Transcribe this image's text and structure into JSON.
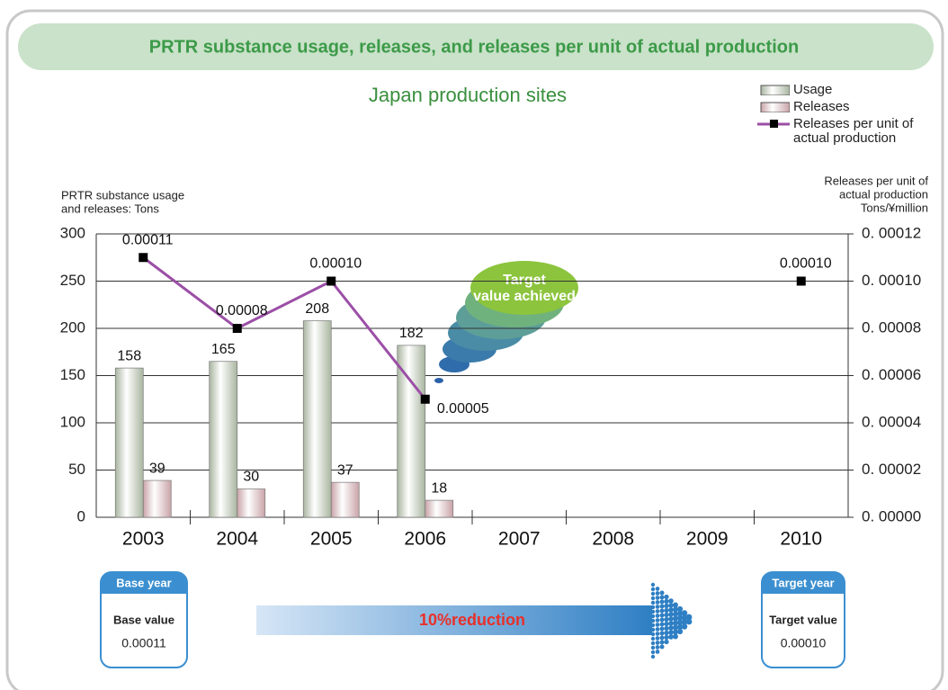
{
  "chart_data": {
    "type": "bar",
    "title": "PRTR substance usage, releases, and releases per unit of actual production",
    "subtitle": "Japan production sites",
    "y_label": [
      "PRTR substance usage",
      "and releases: Tons"
    ],
    "y2_label": [
      "Releases per unit of",
      "actual production",
      "Tons/¥million"
    ],
    "categories": [
      "2003",
      "2004",
      "2005",
      "2006",
      "2007",
      "2008",
      "2009",
      "2010"
    ],
    "series": [
      {
        "name": "Usage",
        "type": "bar",
        "color": "#a9b5a0",
        "values": [
          158,
          165,
          208,
          182,
          null,
          null,
          null,
          null
        ]
      },
      {
        "name": "Releases",
        "type": "bar",
        "color": "#c9a3a8",
        "values": [
          39,
          30,
          37,
          18,
          null,
          null,
          null,
          null
        ]
      },
      {
        "name": "Releases per unit of actual production",
        "type": "line",
        "axis": "y2",
        "color": "#9b4fa6",
        "values": [
          0.00011,
          8e-05,
          0.0001,
          5e-05,
          null,
          null,
          null,
          0.0001
        ],
        "value_labels": [
          "0.00011",
          "0.00008",
          "0.00010",
          "0.00005",
          null,
          null,
          null,
          "0.00010"
        ]
      }
    ],
    "ylim": [
      0,
      300
    ],
    "yticks": [
      0,
      50,
      100,
      150,
      200,
      250,
      300
    ],
    "y2lim": [
      0,
      0.00012
    ],
    "y2ticks": [
      {
        "value": 0,
        "label": "0. 00000"
      },
      {
        "value": 2e-05,
        "label": "0. 00002"
      },
      {
        "value": 4e-05,
        "label": "0. 00004"
      },
      {
        "value": 6e-05,
        "label": "0. 00006"
      },
      {
        "value": 8e-05,
        "label": "0. 00008"
      },
      {
        "value": 0.0001,
        "label": "0. 00010"
      },
      {
        "value": 0.00012,
        "label": "0. 00012"
      }
    ],
    "grid": true,
    "legend": "top-right",
    "annotations": {
      "bubble": "Target value achieved",
      "base": {
        "header": "Base year",
        "label": "Base value",
        "value": "0.00011"
      },
      "arrow": "10%reduction",
      "target": {
        "header": "Target year",
        "label": "Target value",
        "value": "0.00010"
      }
    }
  }
}
